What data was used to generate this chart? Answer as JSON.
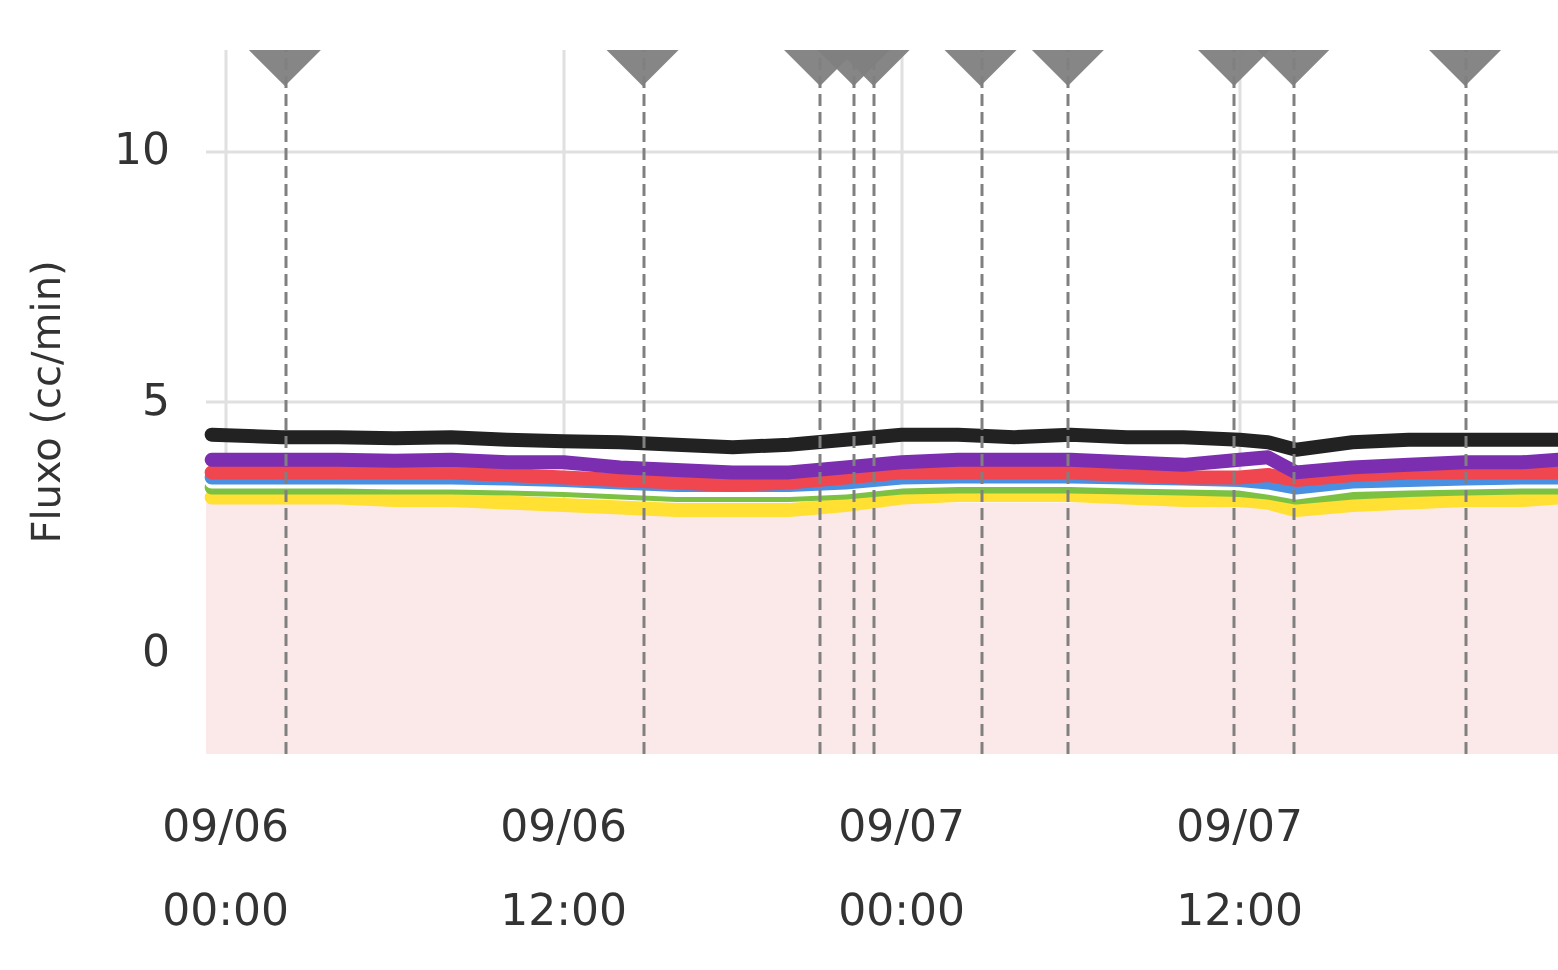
{
  "chart_data": {
    "type": "line",
    "ylabel": "Fluxo (cc/min)",
    "x": [
      "--09-05T23:30",
      "--09-06T02:00",
      "--09-06T04:00",
      "--09-06T06:00",
      "--09-06T08:00",
      "--09-06T10:00",
      "--09-06T12:00",
      "--09-06T14:00",
      "--09-06T16:00",
      "--09-06T18:00",
      "--09-06T20:00",
      "--09-06T22:00",
      "--09-07T00:00",
      "--09-07T02:00",
      "--09-07T04:00",
      "--09-07T06:00",
      "--09-07T08:00",
      "--09-07T10:00",
      "--09-07T12:00",
      "--09-07T13:00",
      "--09-07T14:00",
      "--09-07T16:00",
      "--09-07T18:00",
      "--09-07T20:00",
      "--09-07T22:00",
      "--09-07T23:18"
    ],
    "xlim": [
      "--09-05T23:18",
      "--09-07T23:18"
    ],
    "xticks": [
      {
        "value": "--09-06T00:00",
        "label": "09/06\n00:00"
      },
      {
        "value": "--09-06T12:00",
        "label": "09/06\n12:00"
      },
      {
        "value": "--09-07T00:00",
        "label": "09/07\n00:00"
      },
      {
        "value": "--09-07T12:00",
        "label": "09/07\n12:00"
      }
    ],
    "ylim": [
      -2,
      12
    ],
    "yticks": [
      0,
      5,
      10
    ],
    "grid": true,
    "marker": "none",
    "line_style": "solid",
    "series": [
      {
        "color": "#ffe033",
        "values": [
          3.1,
          3.1,
          3.1,
          3.05,
          3.05,
          3.0,
          2.95,
          2.9,
          2.85,
          2.85,
          2.85,
          2.95,
          3.1,
          3.15,
          3.15,
          3.15,
          3.1,
          3.05,
          3.05,
          3.0,
          2.85,
          2.95,
          3.0,
          3.05,
          3.05,
          3.1
        ]
      },
      {
        "color": "#7cc142",
        "values": [
          3.3,
          3.3,
          3.3,
          3.3,
          3.3,
          3.28,
          3.25,
          3.2,
          3.15,
          3.15,
          3.15,
          3.2,
          3.3,
          3.32,
          3.32,
          3.32,
          3.3,
          3.28,
          3.25,
          3.2,
          3.1,
          3.2,
          3.25,
          3.28,
          3.3,
          3.3
        ]
      },
      {
        "color": "#ffffff",
        "values": [
          3.42,
          3.42,
          3.42,
          3.4,
          3.4,
          3.38,
          3.35,
          3.3,
          3.25,
          3.25,
          3.25,
          3.3,
          3.42,
          3.45,
          3.45,
          3.45,
          3.42,
          3.4,
          3.38,
          3.3,
          3.2,
          3.35,
          3.38,
          3.4,
          3.42,
          3.42
        ]
      },
      {
        "color": "#4a90e2",
        "values": [
          3.5,
          3.5,
          3.5,
          3.5,
          3.5,
          3.48,
          3.45,
          3.4,
          3.35,
          3.35,
          3.35,
          3.4,
          3.5,
          3.52,
          3.52,
          3.52,
          3.5,
          3.48,
          3.45,
          3.4,
          3.3,
          3.42,
          3.45,
          3.48,
          3.5,
          3.5
        ]
      },
      {
        "color": "#f0464f",
        "values": [
          3.6,
          3.6,
          3.6,
          3.6,
          3.6,
          3.55,
          3.5,
          3.45,
          3.4,
          3.35,
          3.4,
          3.5,
          3.6,
          3.6,
          3.6,
          3.6,
          3.55,
          3.5,
          3.5,
          3.55,
          3.45,
          3.55,
          3.6,
          3.6,
          3.6,
          3.6
        ]
      },
      {
        "color": "#7b2fb0",
        "values": [
          3.85,
          3.85,
          3.85,
          3.83,
          3.85,
          3.8,
          3.8,
          3.7,
          3.65,
          3.6,
          3.6,
          3.7,
          3.8,
          3.85,
          3.85,
          3.85,
          3.8,
          3.75,
          3.85,
          3.9,
          3.6,
          3.7,
          3.75,
          3.8,
          3.8,
          3.85
        ]
      },
      {
        "color": "#222222",
        "values": [
          4.35,
          4.3,
          4.3,
          4.28,
          4.3,
          4.25,
          4.22,
          4.2,
          4.15,
          4.1,
          4.15,
          4.25,
          4.35,
          4.35,
          4.3,
          4.35,
          4.3,
          4.3,
          4.25,
          4.2,
          4.05,
          4.2,
          4.25,
          4.25,
          4.25,
          4.25
        ]
      }
    ],
    "bands": [
      {
        "axis": "y",
        "from": -2,
        "to": 3,
        "color": "#fbe9e9"
      }
    ],
    "ref_lines": [
      {
        "axis": "x",
        "value": "--09-06T02:06",
        "color": "#808080",
        "line_style": "dashed"
      },
      {
        "axis": "x",
        "value": "--09-06T14:48",
        "color": "#808080",
        "line_style": "dashed"
      },
      {
        "axis": "x",
        "value": "--09-06T21:06",
        "color": "#808080",
        "line_style": "dashed"
      },
      {
        "axis": "x",
        "value": "--09-06T22:18",
        "color": "#808080",
        "line_style": "dashed"
      },
      {
        "axis": "x",
        "value": "--09-06T23:00",
        "color": "#808080",
        "line_style": "dashed"
      },
      {
        "axis": "x",
        "value": "--09-07T02:48",
        "color": "#808080",
        "line_style": "dashed"
      },
      {
        "axis": "x",
        "value": "--09-07T05:54",
        "color": "#808080",
        "line_style": "dashed"
      },
      {
        "axis": "x",
        "value": "--09-07T11:48",
        "color": "#808080",
        "line_style": "dashed"
      },
      {
        "axis": "x",
        "value": "--09-07T13:54",
        "color": "#808080",
        "line_style": "dashed"
      },
      {
        "axis": "x",
        "value": "--09-07T20:00",
        "color": "#808080",
        "line_style": "dashed"
      }
    ]
  }
}
